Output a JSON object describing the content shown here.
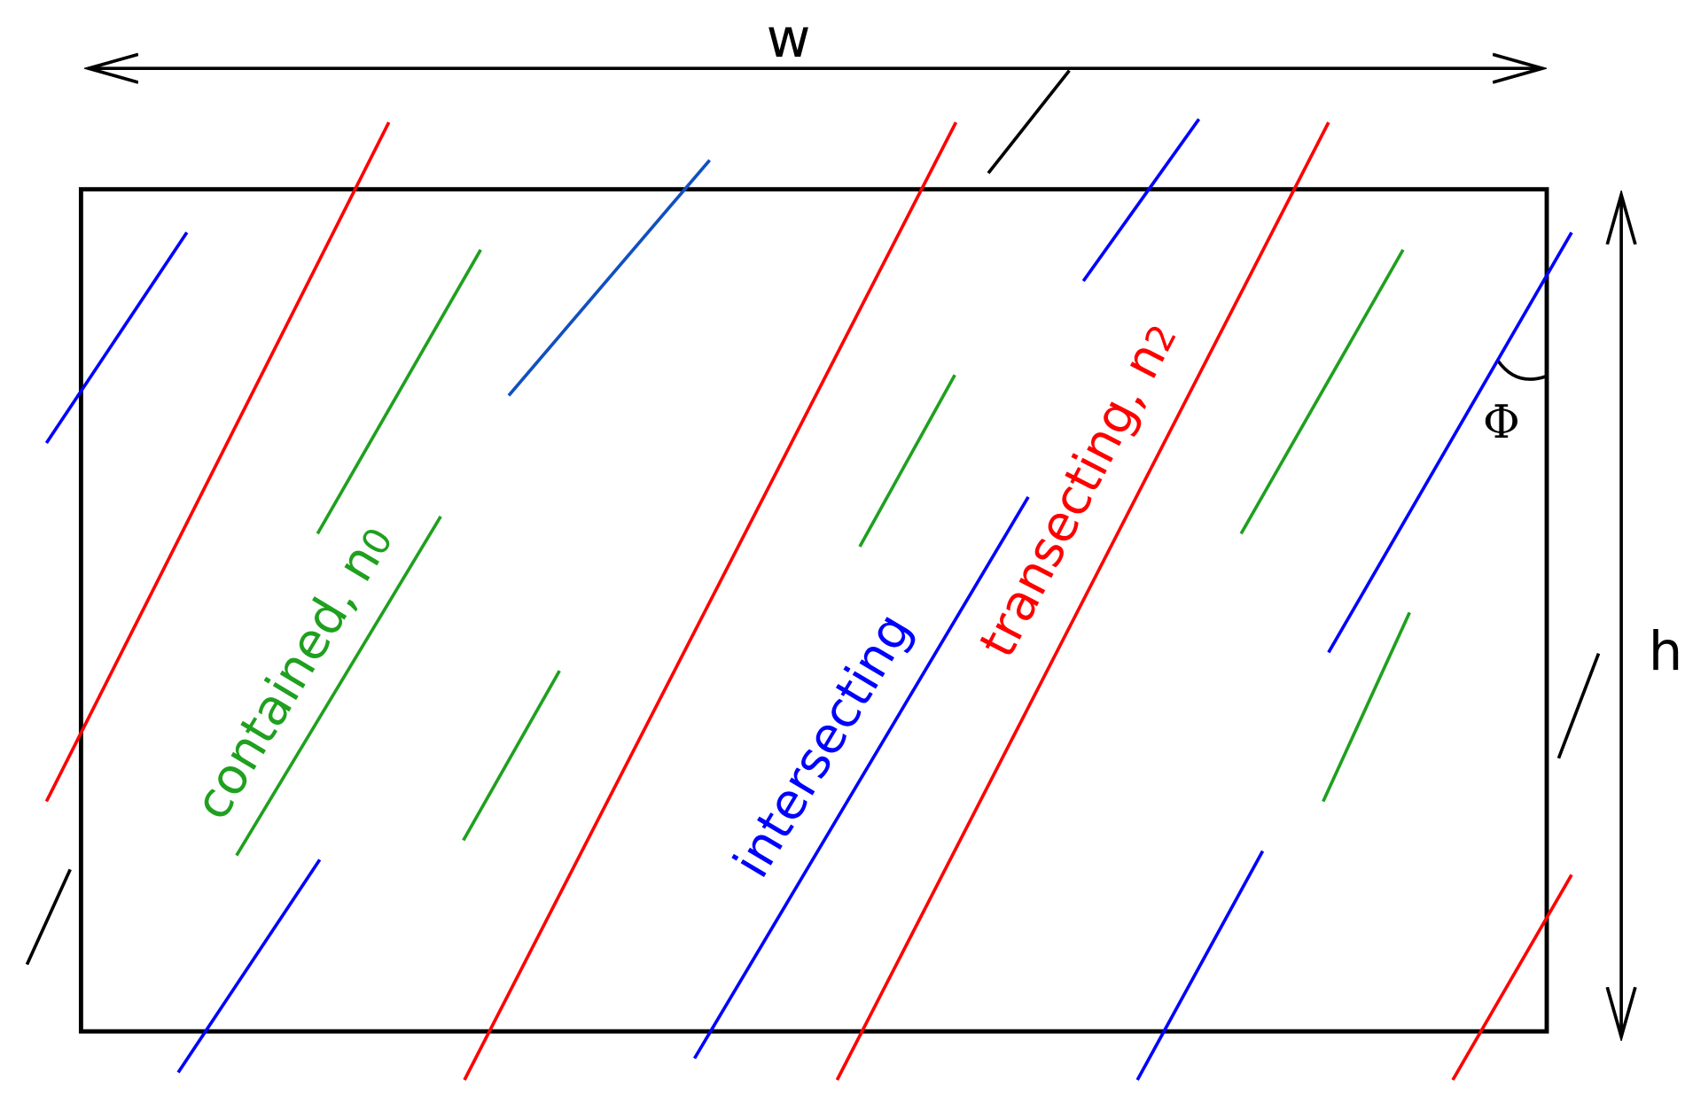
{
  "axes": {
    "width_label": "w",
    "height_label": "h",
    "angle_label": "Φ"
  },
  "labels": {
    "contained": {
      "text": "contained, n",
      "subscript": "0"
    },
    "intersecting": {
      "text": "intersecting"
    },
    "transecting": {
      "text": "transecting, n",
      "subscript": "2"
    }
  }
}
